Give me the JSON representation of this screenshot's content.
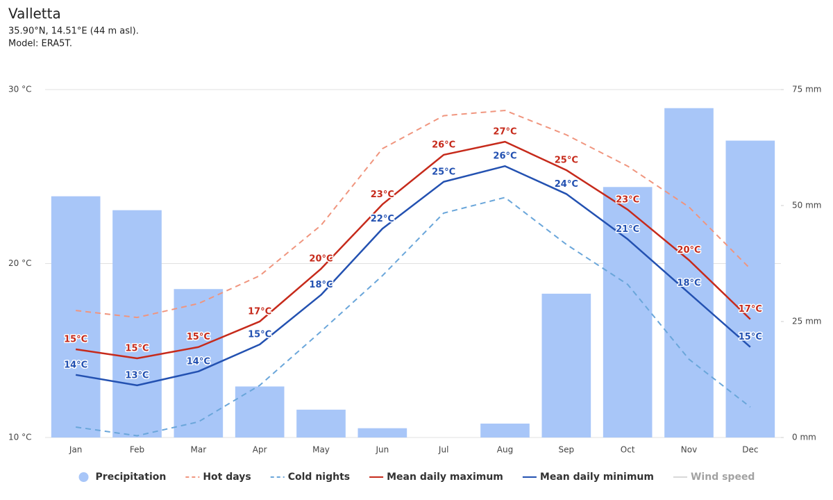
{
  "chart_data": {
    "type": "combo",
    "title": "Valletta",
    "subtitle": [
      "35.90°N, 14.51°E (44 m asl).",
      "Model: ERA5T."
    ],
    "categories": [
      "Jan",
      "Feb",
      "Mar",
      "Apr",
      "May",
      "Jun",
      "Jul",
      "Aug",
      "Sep",
      "Oct",
      "Nov",
      "Dec"
    ],
    "ylim": [
      10,
      30
    ],
    "yticks": [
      {
        "value": 10,
        "label": "10 °C"
      },
      {
        "value": 20,
        "label": "20 °C"
      },
      {
        "value": 30,
        "label": "30 °C"
      }
    ],
    "y2lim": [
      0,
      75
    ],
    "y2ticks": [
      {
        "value": 0,
        "label": "0 mm"
      },
      {
        "value": 25,
        "label": "25 mm"
      },
      {
        "value": 50,
        "label": "50 mm"
      },
      {
        "value": 75,
        "label": "75 mm"
      }
    ],
    "grid": true,
    "legend": "bottom",
    "series": [
      {
        "name": "Precipitation",
        "type": "bar",
        "axis": "y2",
        "color": "#a8c6f8",
        "values": [
          52,
          49,
          32,
          11,
          6,
          2,
          0,
          3,
          31,
          54,
          71,
          64
        ]
      },
      {
        "name": "Hot days",
        "type": "line",
        "dashed": true,
        "color": "#f0957e",
        "values": [
          17.3,
          16.9,
          17.7,
          19.3,
          22.2,
          26.6,
          28.5,
          28.8,
          27.4,
          25.6,
          23.25,
          19.7
        ]
      },
      {
        "name": "Cold nights",
        "type": "line",
        "dashed": true,
        "color": "#6aa6da",
        "values": [
          10.6,
          10.1,
          10.9,
          13.0,
          16.1,
          19.3,
          22.9,
          23.8,
          21.1,
          18.8,
          14.5,
          11.75
        ]
      },
      {
        "name": "Mean daily maximum",
        "type": "line",
        "color": "#c62a1b",
        "values": [
          15.07,
          14.55,
          15.2,
          16.67,
          19.7,
          23.4,
          26.25,
          27.0,
          25.37,
          23.1,
          20.2,
          16.8
        ],
        "value_labels": [
          "15°C",
          "15°C",
          "15°C",
          "17°C",
          "20°C",
          "23°C",
          "26°C",
          "27°C",
          "25°C",
          "23°C",
          "20°C",
          "17°C"
        ]
      },
      {
        "name": "Mean daily minimum",
        "type": "line",
        "color": "#2351b1",
        "values": [
          13.6,
          13.0,
          13.8,
          15.35,
          18.2,
          22.0,
          24.7,
          25.6,
          24.0,
          21.4,
          18.3,
          15.2
        ],
        "value_labels": [
          "14°C",
          "13°C",
          "14°C",
          "15°C",
          "18°C",
          "22°C",
          "25°C",
          "26°C",
          "24°C",
          "21°C",
          "18°C",
          "15°C"
        ]
      },
      {
        "name": "Wind speed",
        "type": "line",
        "hidden": true,
        "color": "#aaaaaa"
      }
    ]
  }
}
